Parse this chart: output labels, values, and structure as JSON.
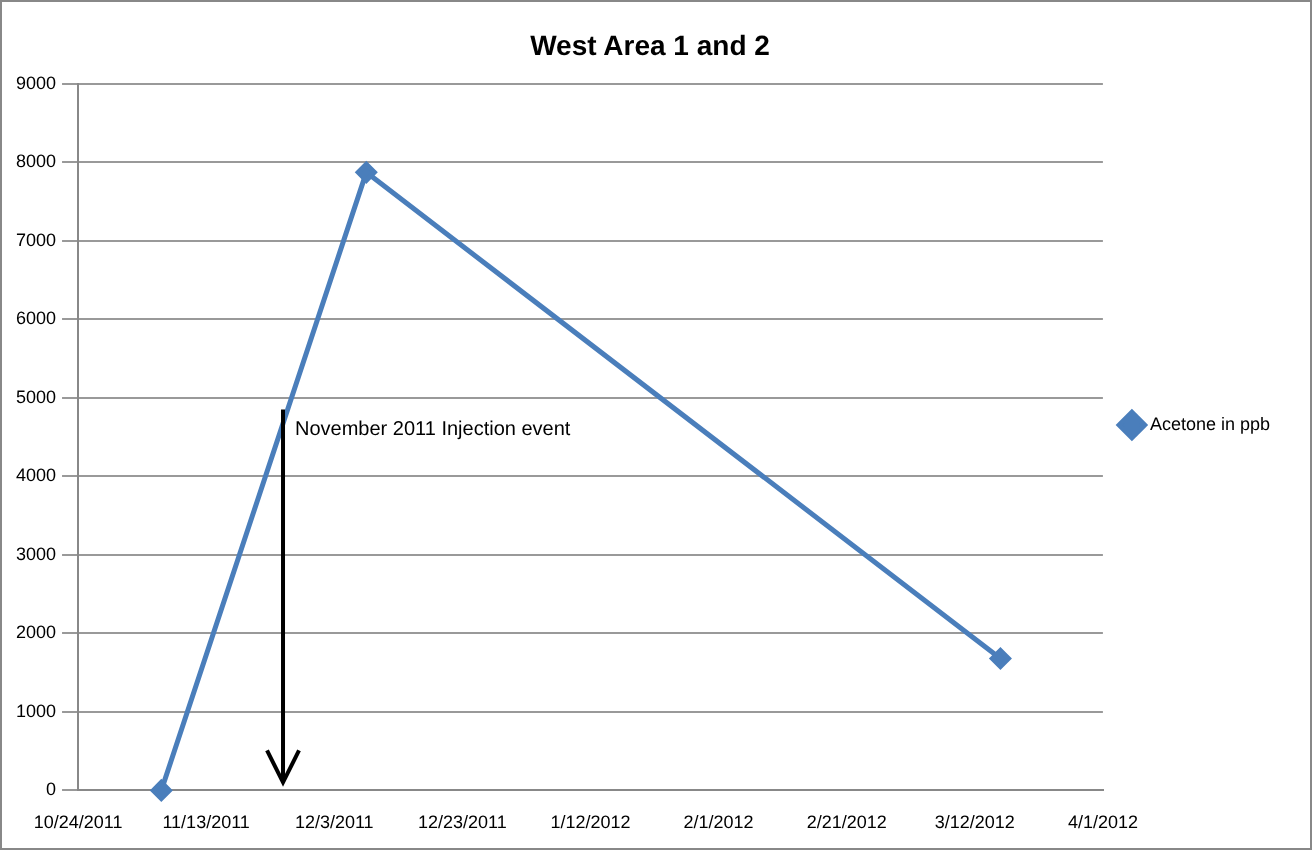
{
  "chart_data": {
    "type": "line",
    "title": "West Area 1 and 2",
    "x": [
      "2011-11-06",
      "2011-12-08",
      "2012-03-16"
    ],
    "series": [
      {
        "name": "Acetone in ppb",
        "color": "#4a7ebb",
        "values": [
          0,
          7870,
          1680
        ]
      }
    ],
    "xlim": [
      "2011-10-24",
      "2012-04-01"
    ],
    "xticks": [
      {
        "value": "2011-10-24",
        "label": "10/24/2011"
      },
      {
        "value": "2011-11-13",
        "label": "11/13/2011"
      },
      {
        "value": "2011-12-03",
        "label": "12/3/2011"
      },
      {
        "value": "2011-12-23",
        "label": "12/23/2011"
      },
      {
        "value": "2012-01-12",
        "label": "1/12/2012"
      },
      {
        "value": "2012-02-01",
        "label": "2/1/2012"
      },
      {
        "value": "2012-02-21",
        "label": "2/21/2012"
      },
      {
        "value": "2012-03-12",
        "label": "3/12/2012"
      },
      {
        "value": "2012-04-01",
        "label": "4/1/2012"
      }
    ],
    "ylim": [
      0,
      9000
    ],
    "yticks": [
      0,
      1000,
      2000,
      3000,
      4000,
      5000,
      6000,
      7000,
      8000,
      9000
    ],
    "annotations": [
      {
        "text": "November 2011 Injection event",
        "x": "2011-11-25",
        "y": 4850
      }
    ],
    "grid": "y",
    "legend": "right",
    "marker": "diamond",
    "line_style": "solid"
  }
}
